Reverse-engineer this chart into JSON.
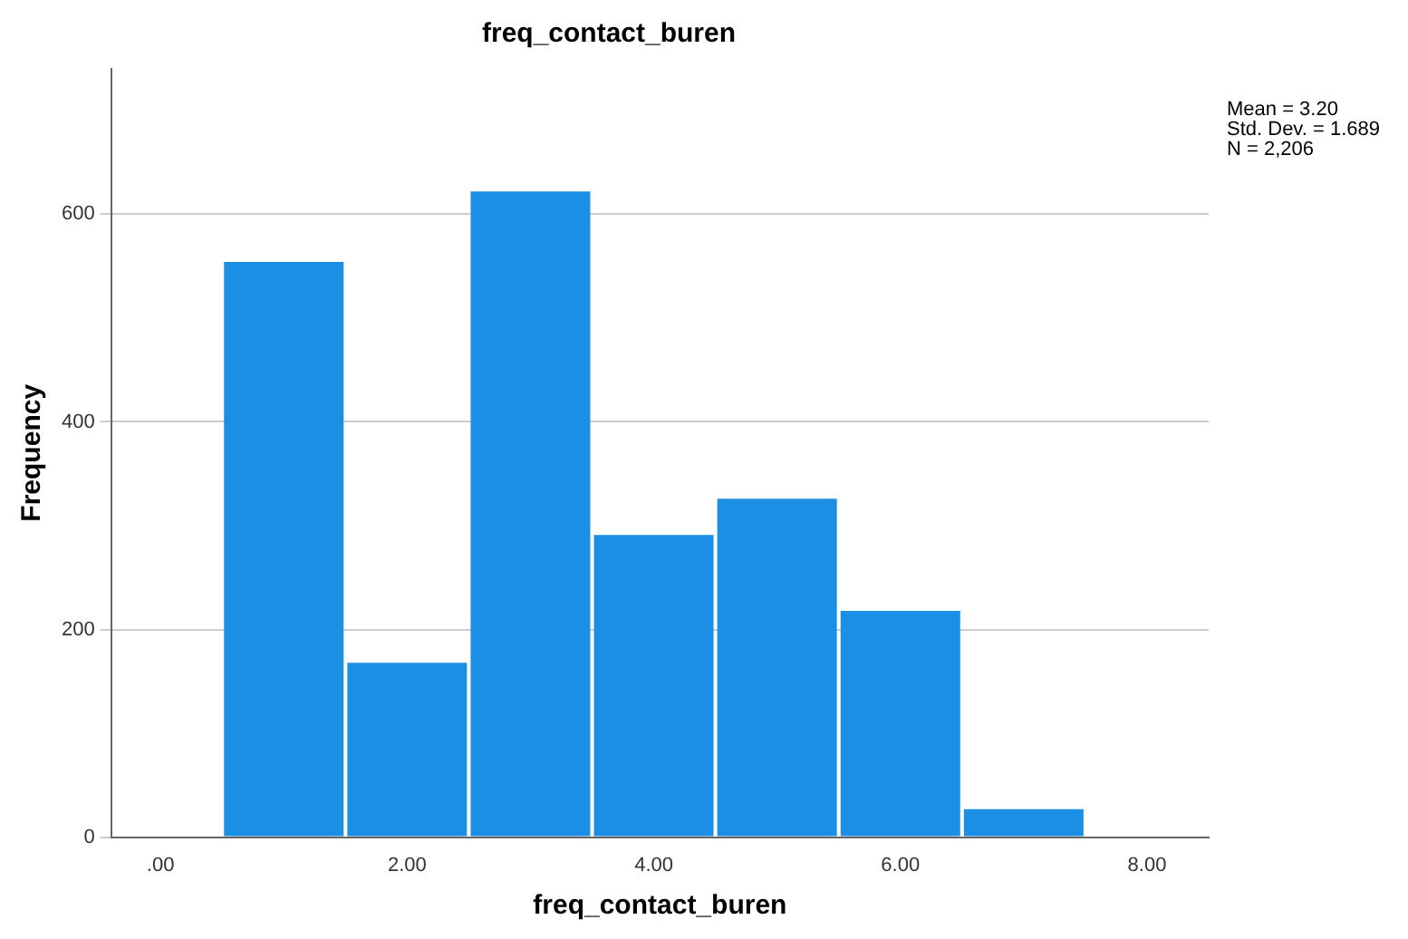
{
  "chart_data": {
    "type": "histogram",
    "title": "freq_contact_buren",
    "xlabel": "freq_contact_buren",
    "ylabel": "Frequency",
    "bins": [
      0.5,
      1.5,
      2.5,
      3.5,
      4.5,
      5.5,
      6.5,
      7.5
    ],
    "values": [
      554,
      168,
      622,
      291,
      326,
      218,
      27
    ],
    "color": "#1a8fe3",
    "xlim": [
      -0.4,
      8.5
    ],
    "xticks": [
      {
        "value": 0,
        "label": ".00"
      },
      {
        "value": 2,
        "label": "2.00"
      },
      {
        "value": 4,
        "label": "4.00"
      },
      {
        "value": 6,
        "label": "6.00"
      },
      {
        "value": 8,
        "label": "8.00"
      }
    ],
    "ylim": [
      0,
      740
    ],
    "yticks": [
      0,
      200,
      400,
      600
    ],
    "grid": "y",
    "legend": false,
    "annotations": [
      "Mean = 3.20",
      "Std. Dev. = 1.689",
      "N = 2,206"
    ]
  }
}
